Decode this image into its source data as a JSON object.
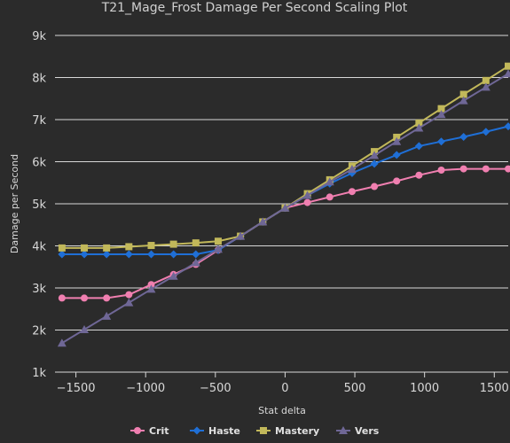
{
  "chart_data": {
    "type": "line",
    "title": "T21_Mage_Frost Damage Per Second Scaling Plot",
    "xlabel": "Stat delta",
    "ylabel": "Damage per Second",
    "xlim": [
      -1650,
      1600
    ],
    "ylim": [
      1000,
      9000
    ],
    "x_ticks": [
      -1500,
      -1000,
      -500,
      0,
      500,
      1000,
      1500
    ],
    "x_tick_labels": [
      "−1500",
      "−1000",
      "−500",
      "0",
      "500",
      "1000",
      "1500"
    ],
    "y_ticks": [
      1000,
      2000,
      3000,
      4000,
      5000,
      6000,
      7000,
      8000,
      9000
    ],
    "y_tick_labels": [
      "1k",
      "2k",
      "3k",
      "4k",
      "5k",
      "6k",
      "7k",
      "8k",
      "9k"
    ],
    "grid": "horizontal",
    "legend_position": "bottom",
    "x": [
      -1600,
      -1440,
      -1280,
      -1120,
      -960,
      -800,
      -640,
      -480,
      -320,
      -160,
      0,
      160,
      320,
      480,
      640,
      800,
      960,
      1120,
      1280,
      1440,
      1600
    ],
    "series": [
      {
        "name": "Crit",
        "color": "#f07fb0",
        "marker": "circle",
        "values": [
          2760,
          2760,
          2760,
          2840,
          3080,
          3320,
          3560,
          3900,
          4230,
          4570,
          4900,
          5030,
          5160,
          5290,
          5410,
          5540,
          5680,
          5800,
          5830,
          5830,
          5830
        ]
      },
      {
        "name": "Haste",
        "color": "#1f6fd6",
        "marker": "diamond",
        "values": [
          3800,
          3800,
          3800,
          3800,
          3800,
          3800,
          3800,
          3900,
          4230,
          4570,
          4900,
          5200,
          5480,
          5730,
          5950,
          6160,
          6370,
          6480,
          6590,
          6710,
          6840
        ]
      },
      {
        "name": "Mastery",
        "color": "#c2b85a",
        "marker": "square",
        "values": [
          3950,
          3950,
          3950,
          3980,
          4010,
          4040,
          4070,
          4110,
          4230,
          4570,
          4900,
          5240,
          5570,
          5900,
          6240,
          6580,
          6920,
          7260,
          7600,
          7930,
          8270
        ]
      },
      {
        "name": "Vers",
        "color": "#6f6796",
        "marker": "triangle",
        "values": [
          1690,
          2010,
          2330,
          2650,
          2970,
          3280,
          3600,
          3920,
          4230,
          4570,
          4900,
          5200,
          5520,
          5820,
          6150,
          6480,
          6800,
          7120,
          7450,
          7770,
          8090
        ]
      }
    ]
  }
}
